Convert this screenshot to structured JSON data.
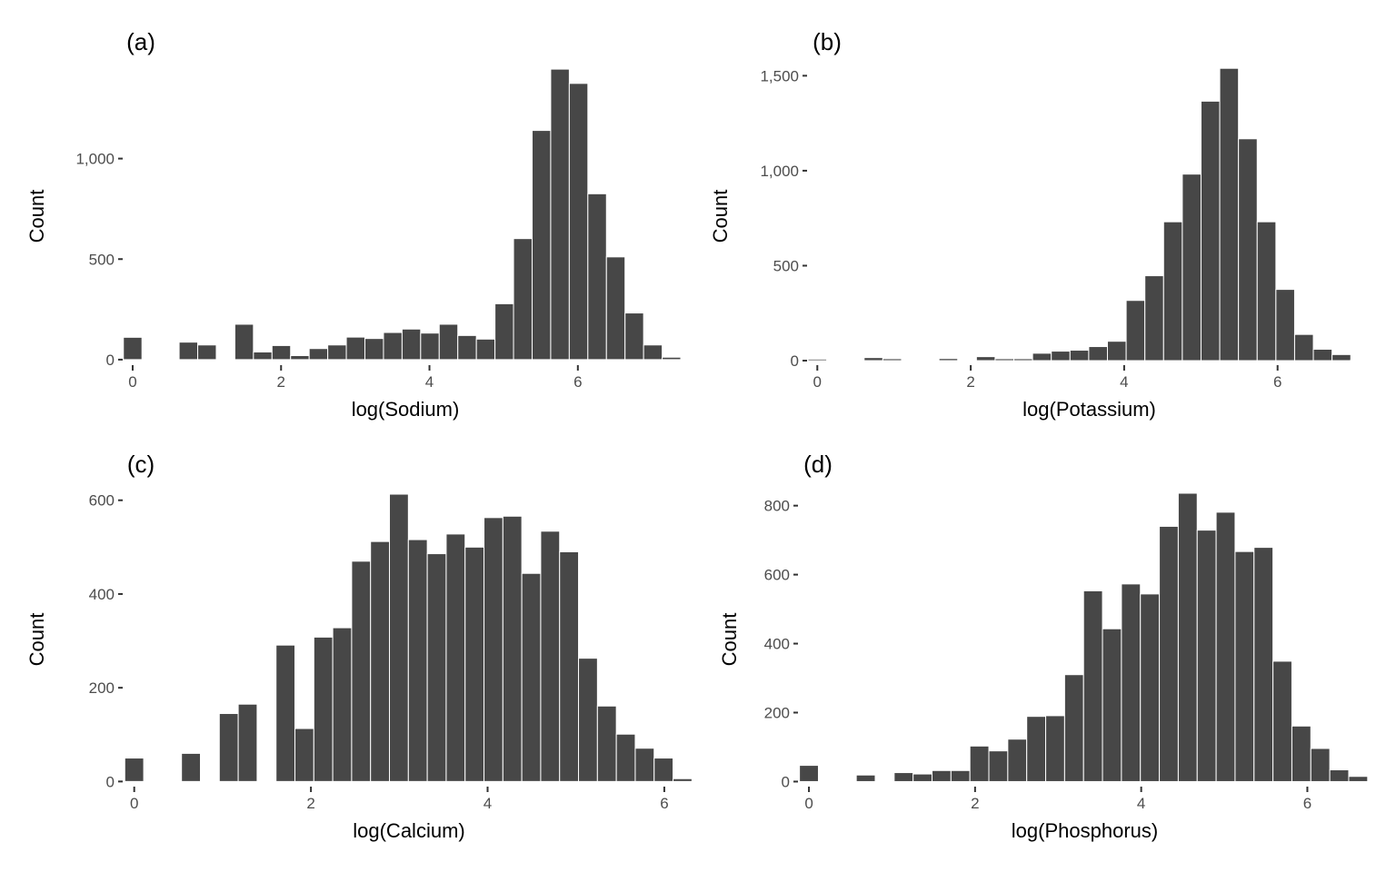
{
  "chart_data": [
    {
      "type": "bar",
      "tag": "(a)",
      "xlabel": "log(Sodium)",
      "ylabel": "Count",
      "bin_start": 0,
      "bin_width": 0.2504,
      "values": [
        111,
        0,
        0,
        87,
        73,
        0,
        176,
        38,
        70,
        20,
        55,
        73,
        112,
        105,
        135,
        152,
        132,
        176,
        120,
        102,
        278,
        602,
        1140,
        1445,
        1374,
        825,
        511,
        232,
        73,
        12
      ],
      "xlim": [
        -0.11,
        7.46
      ],
      "ylim": [
        -23,
        1450
      ],
      "xticks": [
        {
          "value": 0,
          "label": "0"
        },
        {
          "value": 2,
          "label": "2"
        },
        {
          "value": 4,
          "label": "4"
        },
        {
          "value": 6,
          "label": "6"
        }
      ],
      "yticks": [
        {
          "value": 0,
          "label": "0"
        },
        {
          "value": 500,
          "label": "500"
        },
        {
          "value": 1000,
          "label": "1,000"
        }
      ],
      "grid": false,
      "bar_color": "#474747"
    },
    {
      "type": "bar",
      "tag": "(b)",
      "xlabel": "log(Potassium)",
      "ylabel": "Count",
      "bin_start": 0,
      "bin_width": 0.244,
      "values": [
        8,
        0,
        0,
        16,
        10,
        0,
        3,
        11,
        0,
        21,
        10,
        10,
        39,
        50,
        55,
        74,
        102,
        317,
        447,
        731,
        982,
        1366,
        1539,
        1168,
        731,
        375,
        138,
        60,
        32,
        3
      ],
      "xlim": [
        -0.11,
        7.2
      ],
      "ylim": [
        -19,
        1540
      ],
      "xticks": [
        {
          "value": 0,
          "label": "0"
        },
        {
          "value": 2,
          "label": "2"
        },
        {
          "value": 4,
          "label": "4"
        },
        {
          "value": 6,
          "label": "6"
        }
      ],
      "yticks": [
        {
          "value": 0,
          "label": "0"
        },
        {
          "value": 500,
          "label": "500"
        },
        {
          "value": 1000,
          "label": "1,000"
        },
        {
          "value": 1500,
          "label": "1,500"
        }
      ],
      "grid": false,
      "bar_color": "#474747"
    },
    {
      "type": "bar",
      "tag": "(c)",
      "xlabel": "log(Calcium)",
      "ylabel": "Count",
      "bin_start": 0,
      "bin_width": 0.214,
      "values": [
        50,
        0,
        0,
        60,
        0,
        145,
        165,
        0,
        291,
        113,
        308,
        328,
        470,
        512,
        613,
        516,
        486,
        528,
        500,
        563,
        566,
        444,
        534,
        490,
        263,
        161,
        101,
        71,
        50,
        6
      ],
      "xlim": [
        -0.11,
        6.33
      ],
      "ylim": [
        -9,
        615
      ],
      "xticks": [
        {
          "value": 0,
          "label": "0"
        },
        {
          "value": 2,
          "label": "2"
        },
        {
          "value": 4,
          "label": "4"
        },
        {
          "value": 6,
          "label": "6"
        }
      ],
      "yticks": [
        {
          "value": 0,
          "label": "0"
        },
        {
          "value": 200,
          "label": "200"
        },
        {
          "value": 400,
          "label": "400"
        },
        {
          "value": 600,
          "label": "600"
        }
      ],
      "grid": false,
      "bar_color": "#474747"
    },
    {
      "type": "bar",
      "tag": "(d)",
      "xlabel": "log(Phosphorus)",
      "ylabel": "Count",
      "bin_start": 0,
      "bin_width": 0.228,
      "values": [
        47,
        0,
        0,
        19,
        0,
        26,
        22,
        32,
        32,
        103,
        89,
        123,
        189,
        191,
        310,
        553,
        443,
        573,
        544,
        740,
        836,
        729,
        781,
        667,
        679,
        349,
        161,
        96,
        34,
        15
      ],
      "xlim": [
        -0.11,
        6.75
      ],
      "ylim": [
        -12,
        836
      ],
      "xticks": [
        {
          "value": 0,
          "label": "0"
        },
        {
          "value": 2,
          "label": "2"
        },
        {
          "value": 4,
          "label": "4"
        },
        {
          "value": 6,
          "label": "6"
        }
      ],
      "yticks": [
        {
          "value": 0,
          "label": "0"
        },
        {
          "value": 200,
          "label": "200"
        },
        {
          "value": 400,
          "label": "400"
        },
        {
          "value": 600,
          "label": "600"
        },
        {
          "value": 800,
          "label": "800"
        }
      ],
      "grid": false,
      "bar_color": "#474747"
    }
  ]
}
